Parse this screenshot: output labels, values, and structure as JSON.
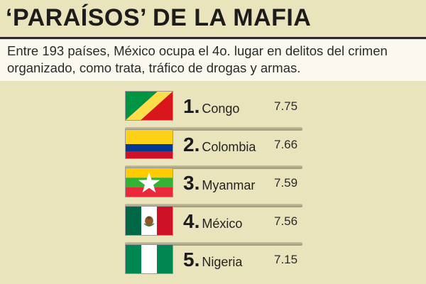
{
  "header": {
    "title": "‘PARAÍSOS’ DE LA MAFIA",
    "subtitle": "Entre 193 países, México ocupa el 4o. lugar en delitos del crimen organizado, como trata, tráfico de drogas y armas."
  },
  "ranking": [
    {
      "rank": "1",
      "country": "Congo",
      "score": "7.75",
      "flag_icon": "congo-flag-icon"
    },
    {
      "rank": "2",
      "country": "Colombia",
      "score": "7.66",
      "flag_icon": "colombia-flag-icon"
    },
    {
      "rank": "3",
      "country": "Myanmar",
      "score": "7.59",
      "flag_icon": "myanmar-flag-icon"
    },
    {
      "rank": "4",
      "country": "México",
      "score": "7.56",
      "flag_icon": "mexico-flag-icon"
    },
    {
      "rank": "5",
      "country": "Nigeria",
      "score": "7.15",
      "flag_icon": "nigeria-flag-icon"
    }
  ],
  "colors": {
    "background": "#eae4bd",
    "subtitle_background": "#fbf8ef",
    "text": "#1f1f1f"
  }
}
